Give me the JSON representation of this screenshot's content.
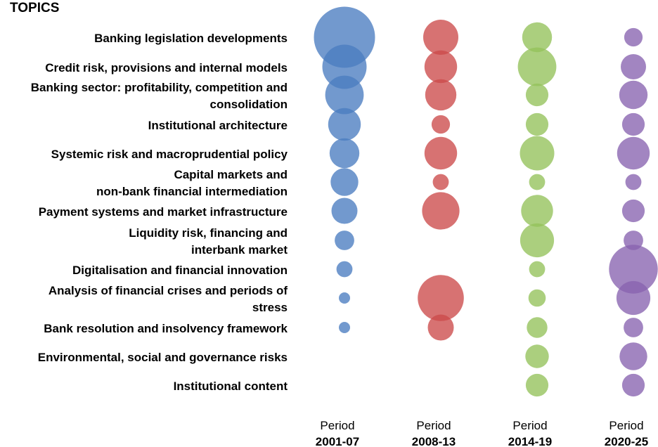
{
  "chart_data": {
    "type": "bubble",
    "title": "TOPICS",
    "topics": [
      [
        "Banking legislation developments"
      ],
      [
        "Credit risk, provisions and internal models"
      ],
      [
        "Banking sector: profitability, competition and",
        "consolidation"
      ],
      [
        "Institutional architecture"
      ],
      [
        "Systemic risk and macroprudential policy"
      ],
      [
        "Capital markets and",
        "non-bank financial intermediation"
      ],
      [
        "Payment systems and market infrastructure"
      ],
      [
        "Liquidity risk, financing and",
        "interbank market"
      ],
      [
        "Digitalisation and financial innovation"
      ],
      [
        "Analysis of financial crises and periods of",
        "stress"
      ],
      [
        "Bank resolution and insolvency framework"
      ],
      [
        "Environmental, social and governance risks"
      ],
      [
        "Institutional content"
      ]
    ],
    "series": [
      {
        "period_label": "Period",
        "years": "2001-07",
        "color": "#4A7CC0",
        "values": [
          88,
          46,
          35,
          25,
          21,
          18,
          16,
          9,
          6,
          3,
          3,
          0,
          0
        ]
      },
      {
        "period_label": "Period",
        "years": "2008-13",
        "color": "#CC4A4A",
        "values": [
          29,
          25,
          23,
          8,
          25,
          6,
          33,
          0,
          0,
          50,
          16,
          0,
          0
        ]
      },
      {
        "period_label": "Period",
        "years": "2014-19",
        "color": "#94C15A",
        "values": [
          21,
          35,
          12,
          12,
          28,
          6,
          24,
          27,
          6,
          7,
          10,
          13,
          12
        ]
      },
      {
        "period_label": "Period",
        "years": "2020-25",
        "color": "#8863B0",
        "values": [
          8,
          15,
          19,
          12,
          25,
          6,
          12,
          9,
          56,
          27,
          9,
          18,
          12
        ]
      }
    ],
    "grid": false,
    "legend": "none"
  }
}
